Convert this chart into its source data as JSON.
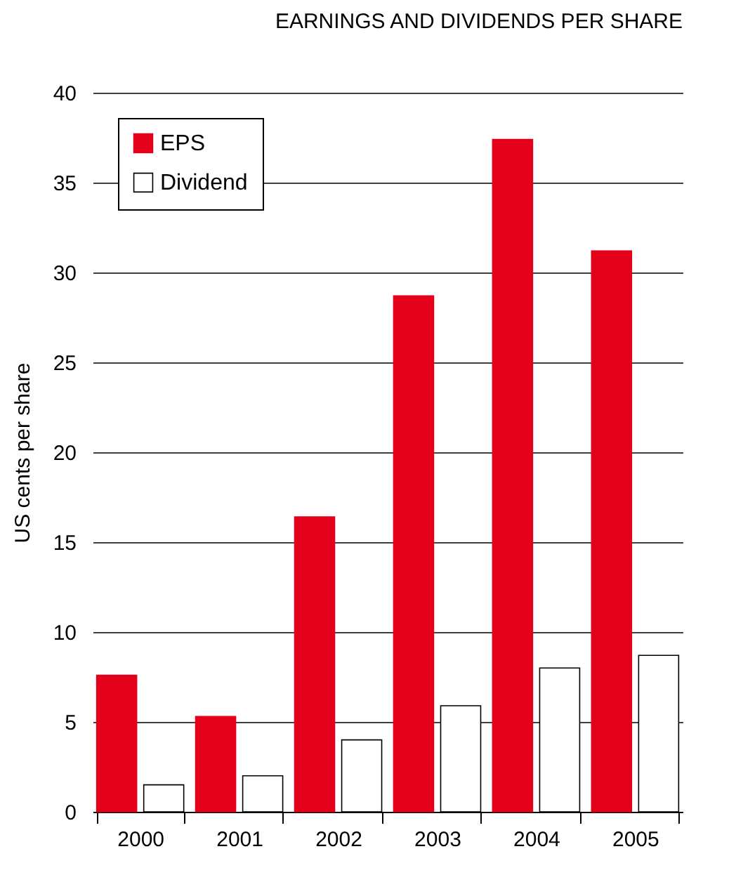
{
  "chart_data": {
    "type": "bar",
    "title": "EARNINGS AND DIVIDENDS PER SHARE",
    "ylabel": "US cents per share",
    "categories": [
      "2000",
      "2001",
      "2002",
      "2003",
      "2004",
      "2005"
    ],
    "series": [
      {
        "name": "EPS",
        "color": "#e2001a",
        "values": [
          7.6,
          5.3,
          16.4,
          28.7,
          37.4,
          31.2
        ]
      },
      {
        "name": "Dividend",
        "color": "#ffffff",
        "values": [
          1.5,
          2.0,
          4.0,
          5.9,
          8.0,
          8.7
        ]
      }
    ],
    "ylim": [
      0,
      40
    ],
    "yticks": [
      0,
      5,
      10,
      15,
      20,
      25,
      30,
      35,
      40
    ],
    "grid": "y",
    "legend": "top left"
  }
}
